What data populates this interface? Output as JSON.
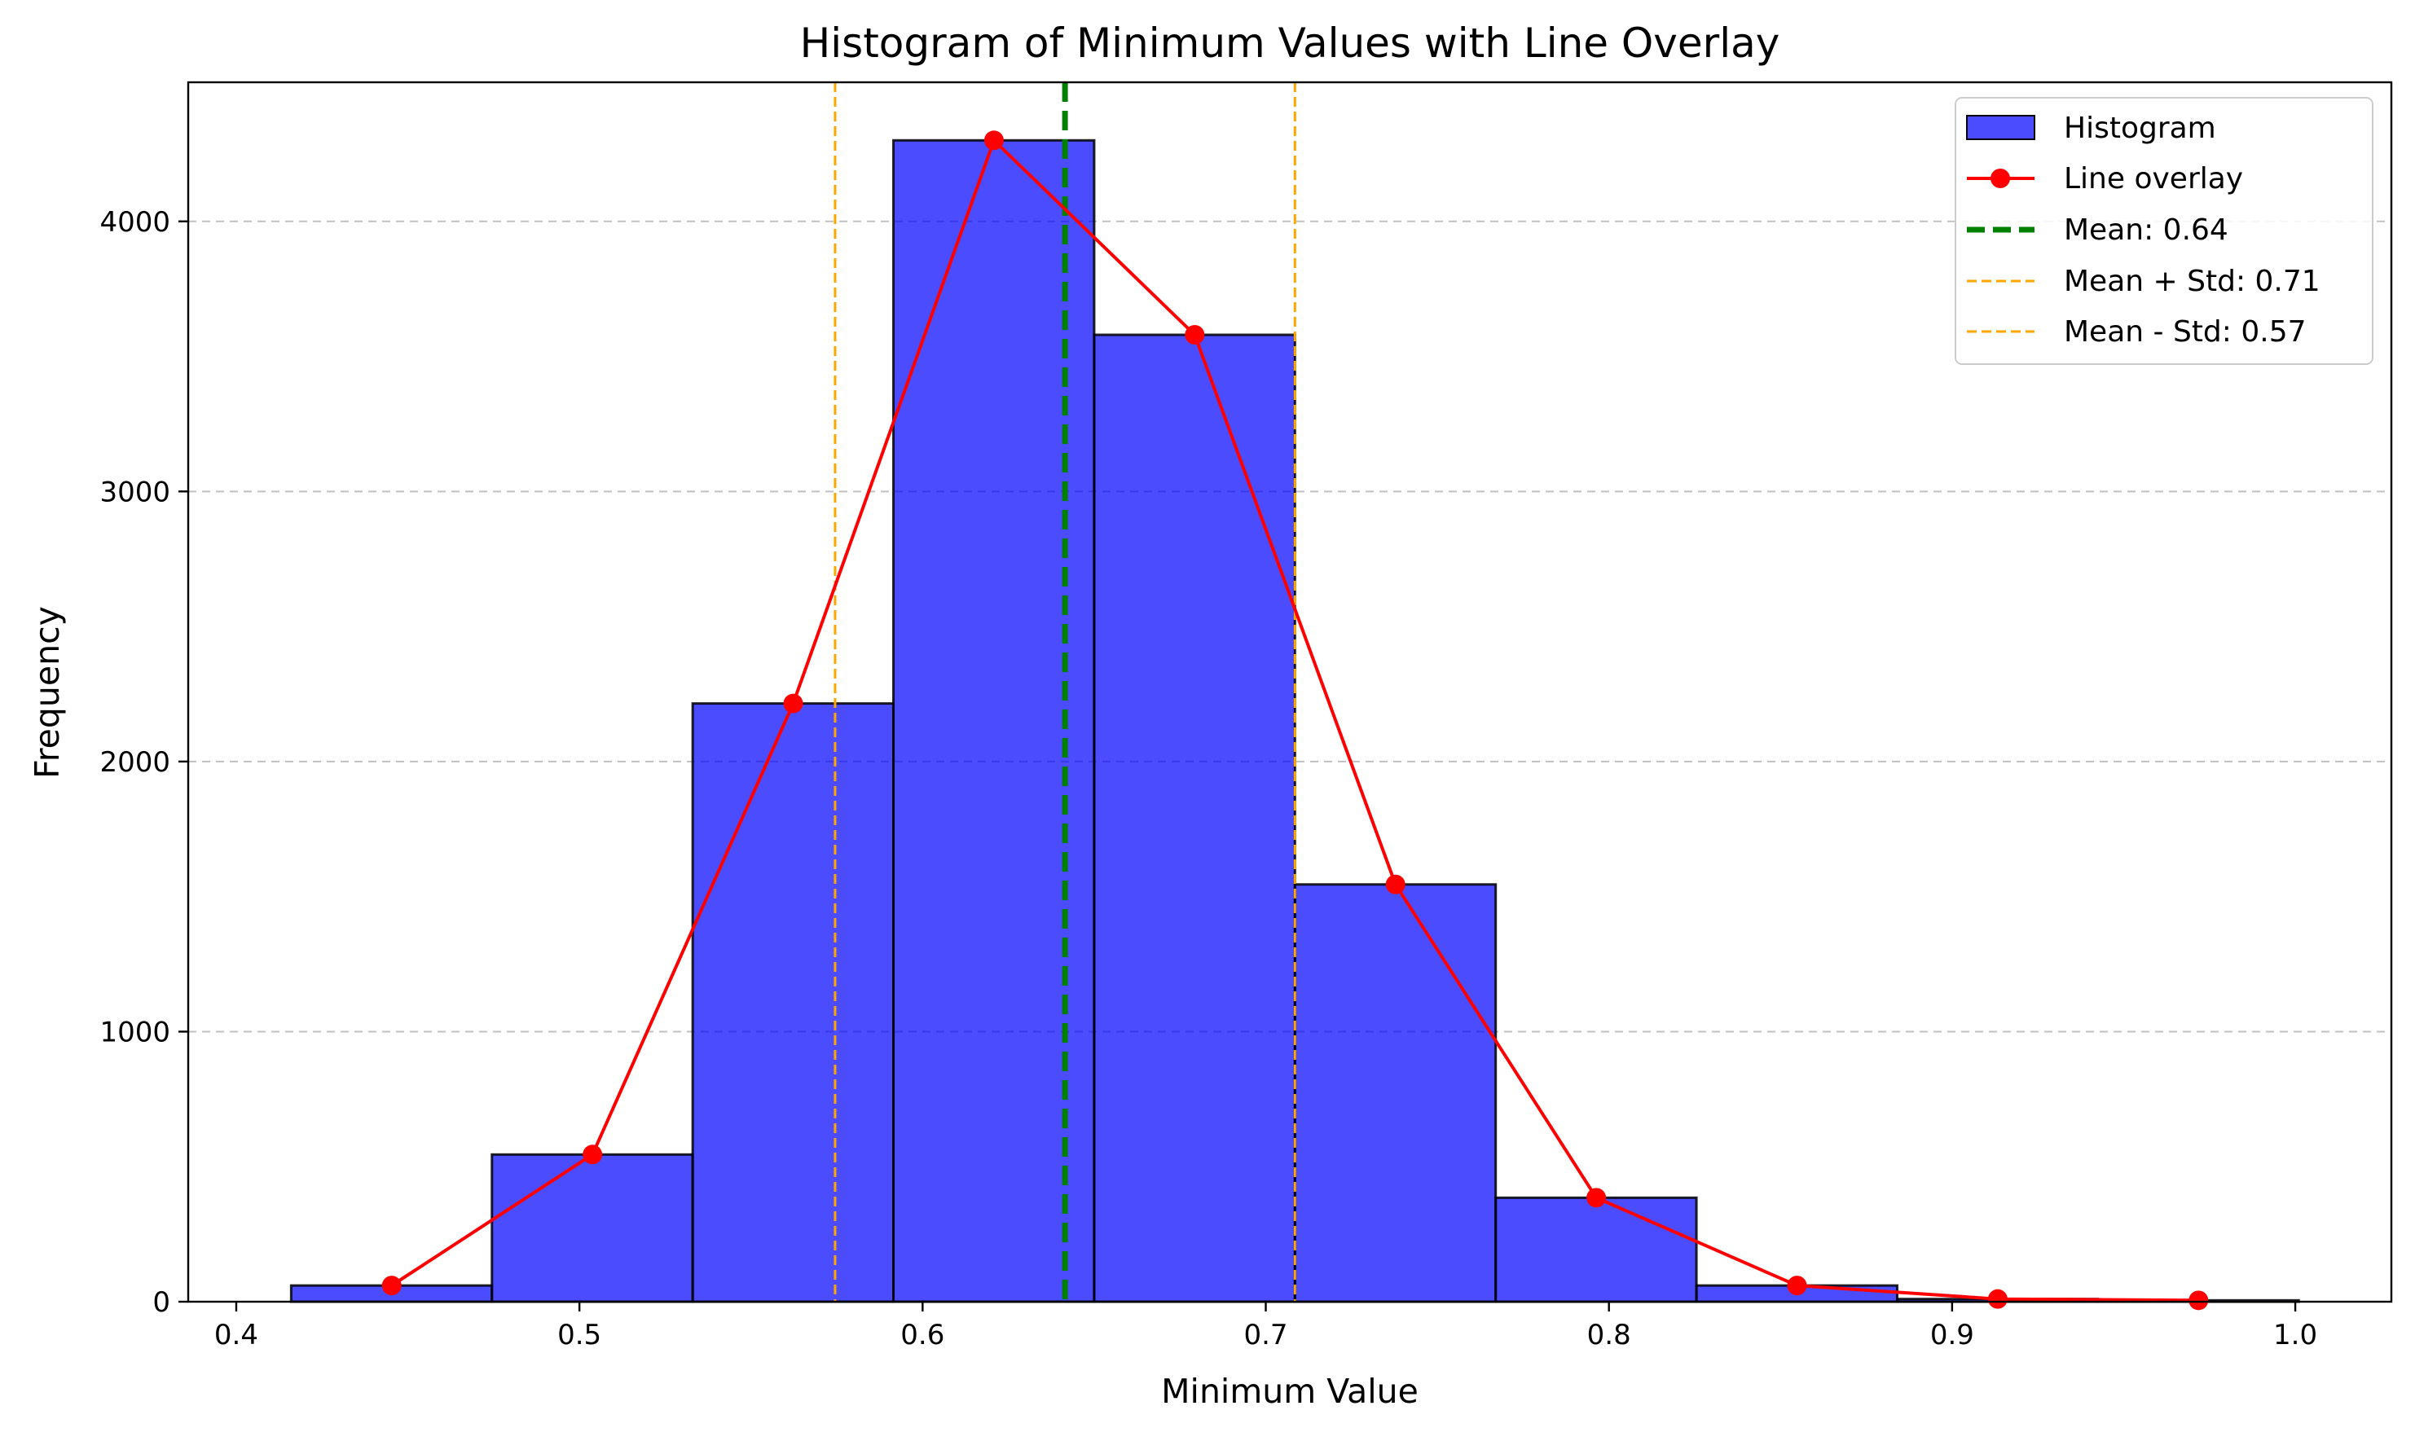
{
  "chart_data": {
    "type": "bar",
    "title": "Histogram of Minimum Values with Line Overlay",
    "xlabel": "Minimum Value",
    "ylabel": "Frequency",
    "xlim": [
      0.386,
      1.028
    ],
    "ylim": [
      0,
      4515
    ],
    "xticks": [
      0.4,
      0.5,
      0.6,
      0.7,
      0.8,
      0.9,
      1.0
    ],
    "xtick_labels": [
      "0.4",
      "0.5",
      "0.6",
      "0.7",
      "0.8",
      "0.9",
      "1.0"
    ],
    "yticks": [
      0,
      1000,
      2000,
      3000,
      4000
    ],
    "ytick_labels": [
      "0",
      "1000",
      "2000",
      "3000",
      "4000"
    ],
    "grid": {
      "axis": "y",
      "style": "dashed"
    },
    "bin_edges": [
      0.416,
      0.4745,
      0.533,
      0.5915,
      0.65,
      0.7085,
      0.767,
      0.8255,
      0.884,
      0.9425,
      1.001
    ],
    "histogram": {
      "name": "Histogram",
      "values": [
        60,
        545,
        2215,
        4300,
        3580,
        1545,
        385,
        60,
        10,
        5
      ],
      "color": "#0000ff",
      "edge_color": "#000000"
    },
    "line_overlay": {
      "name": "Line overlay",
      "x": [
        0.4453,
        0.5038,
        0.5623,
        0.6208,
        0.6793,
        0.7378,
        0.7963,
        0.8548,
        0.9133,
        0.9718
      ],
      "y": [
        60,
        545,
        2215,
        4300,
        3580,
        1545,
        385,
        60,
        10,
        5
      ],
      "color": "#ff0000"
    },
    "vlines": [
      {
        "name": "Mean: 0.64",
        "x": 0.6415,
        "color": "#008000",
        "style": "dashed-thick"
      },
      {
        "name": "Mean + Std: 0.71",
        "x": 0.7085,
        "color": "#ffa500",
        "style": "dashed-thin"
      },
      {
        "name": "Mean - Std: 0.57",
        "x": 0.5745,
        "color": "#ffa500",
        "style": "dashed-thin"
      }
    ],
    "legend": {
      "position": "top-right",
      "entries": [
        {
          "label": "Histogram",
          "kind": "patch",
          "color": "#0000ff"
        },
        {
          "label": "Line overlay",
          "kind": "line-marker",
          "color": "#ff0000"
        },
        {
          "label": "Mean: 0.64",
          "kind": "dash-thick",
          "color": "#008000"
        },
        {
          "label": "Mean + Std: 0.71",
          "kind": "dash-thin",
          "color": "#ffa500"
        },
        {
          "label": "Mean - Std: 0.57",
          "kind": "dash-thin",
          "color": "#ffa500"
        }
      ]
    }
  }
}
